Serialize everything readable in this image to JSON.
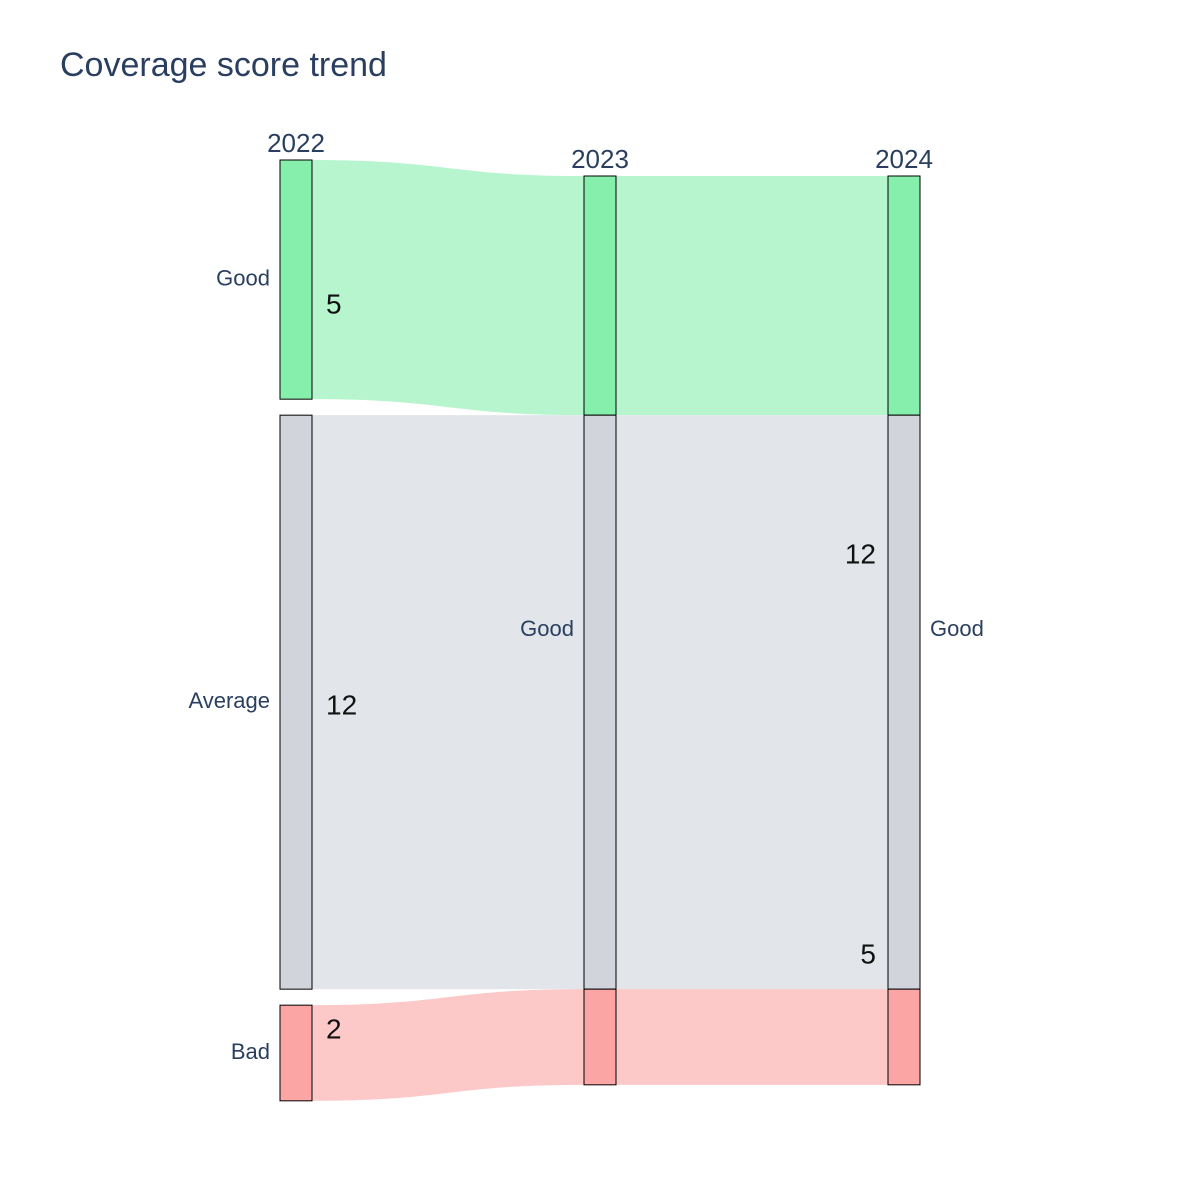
{
  "chart_data": {
    "type": "sankey",
    "title": "Coverage score trend",
    "columns": [
      "2022",
      "2023",
      "2024"
    ],
    "nodes": [
      {
        "id": "n2022_good",
        "column": "2022",
        "label": "Good",
        "value": 5,
        "color": "#86efac"
      },
      {
        "id": "n2022_avg",
        "column": "2022",
        "label": "Average",
        "value": 12,
        "color": "#d1d5db"
      },
      {
        "id": "n2022_bad",
        "column": "2022",
        "label": "Bad",
        "value": 2,
        "color": "#fca5a5"
      },
      {
        "id": "n2023",
        "column": "2023",
        "label": "Good",
        "value": 19,
        "color": "#d1d5db"
      },
      {
        "id": "n2024",
        "column": "2024",
        "label": "Good",
        "value": 19,
        "color": "#d1d5db"
      }
    ],
    "links": [
      {
        "source": "n2022_good",
        "target": "n2023",
        "value": 5,
        "color": "#b7f5cf",
        "band": "good"
      },
      {
        "source": "n2022_avg",
        "target": "n2023",
        "value": 12,
        "color": "#e2e6ea",
        "band": "average"
      },
      {
        "source": "n2022_bad",
        "target": "n2023",
        "value": 2,
        "color": "#fdc8c8",
        "band": "bad"
      },
      {
        "source": "n2023",
        "target": "n2024",
        "value": 5,
        "color": "#b7f5cf",
        "band": "good"
      },
      {
        "source": "n2023",
        "target": "n2024",
        "value": 12,
        "color": "#e2e6ea",
        "band": "average"
      },
      {
        "source": "n2023",
        "target": "n2024",
        "value": 2,
        "color": "#fdc8c8",
        "band": "bad"
      }
    ],
    "value_annotations": [
      {
        "text": "5",
        "column": "2022",
        "band": "good"
      },
      {
        "text": "12",
        "column": "2022",
        "band": "average"
      },
      {
        "text": "2",
        "column": "2022",
        "band": "bad"
      },
      {
        "text": "12",
        "column": "2024",
        "band": "average"
      },
      {
        "text": "5",
        "column": "2024",
        "band": "good"
      }
    ],
    "colors": {
      "good_node": "#86efac",
      "good_link": "#b7f5cf",
      "average_node": "#d1d5db",
      "average_link": "#e2e6ea",
      "bad_node": "#fca5a5",
      "bad_link": "#fdc8c8",
      "text": "#2a3f5f",
      "annotation": "#111111"
    }
  }
}
